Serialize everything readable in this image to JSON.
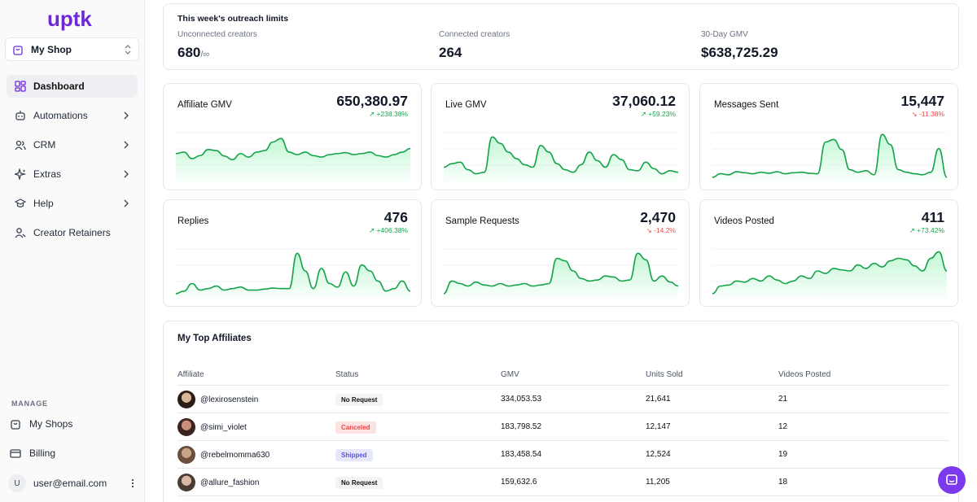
{
  "app": {
    "logo_text": "uptk",
    "brand_color": "#6d28d9"
  },
  "shop_selector": {
    "value": "My Shop"
  },
  "nav": [
    {
      "label": "Dashboard",
      "icon": "dashboard-icon",
      "active": true
    },
    {
      "label": "Automations",
      "icon": "robot-icon"
    },
    {
      "label": "CRM",
      "icon": "users-icon"
    },
    {
      "label": "Extras",
      "icon": "sparkles-icon"
    },
    {
      "label": "Help",
      "icon": "graduation-cap-icon"
    },
    {
      "label": "Creator Retainers",
      "icon": "user-retainer-icon"
    }
  ],
  "manage": {
    "label": "MANAGE",
    "my_shops": "My Shops",
    "billing": "Billing"
  },
  "user": {
    "initial": "U",
    "email": "user@email.com"
  },
  "limits": {
    "title": "This week's outreach limits",
    "unconnected_label": "Unconnected creators",
    "unconnected_value": "680",
    "unconnected_suffix": "/∞",
    "connected_label": "Connected creators",
    "connected_value": "264",
    "gmv_label": "30-Day GMV",
    "gmv_value": "$638,725.29"
  },
  "metrics": [
    {
      "title": "Affiliate GMV",
      "value": "650,380.97",
      "delta": "+238.38%",
      "trend": "up",
      "points": [
        0.52,
        0.55,
        0.42,
        0.48,
        0.6,
        0.58,
        0.47,
        0.4,
        0.52,
        0.45,
        0.55,
        0.58,
        0.75,
        0.82,
        0.55,
        0.5,
        0.55,
        0.48,
        0.45,
        0.5,
        0.52,
        0.54,
        0.5,
        0.52,
        0.55,
        0.48,
        0.45,
        0.5,
        0.55,
        0.62
      ]
    },
    {
      "title": "Live GMV",
      "value": "37,060.12",
      "delta": "+59.23%",
      "trend": "up",
      "points": [
        0.25,
        0.32,
        0.35,
        0.2,
        0.12,
        0.15,
        0.85,
        0.72,
        0.55,
        0.42,
        0.3,
        0.25,
        0.68,
        0.55,
        0.32,
        0.2,
        0.15,
        0.3,
        0.55,
        0.38,
        0.25,
        0.5,
        0.4,
        0.2,
        0.18,
        0.35,
        0.22,
        0.12,
        0.18,
        0.15
      ]
    },
    {
      "title": "Messages Sent",
      "value": "15,447",
      "delta": "-11.38%",
      "trend": "down",
      "points": [
        0.05,
        0.12,
        0.1,
        0.16,
        0.14,
        0.12,
        0.15,
        0.13,
        0.16,
        0.12,
        0.14,
        0.15,
        0.13,
        0.12,
        0.75,
        0.8,
        0.6,
        0.2,
        0.15,
        0.18,
        0.1,
        0.9,
        0.7,
        0.2,
        0.15,
        0.12,
        0.1,
        0.15,
        0.62,
        0.05
      ]
    },
    {
      "title": "Replies",
      "value": "476",
      "delta": "+406.38%",
      "trend": "up",
      "points": [
        0.05,
        0.1,
        0.25,
        0.12,
        0.15,
        0.2,
        0.12,
        0.15,
        0.18,
        0.12,
        0.12,
        0.14,
        0.16,
        0.15,
        0.15,
        0.85,
        0.5,
        0.15,
        0.55,
        0.25,
        0.18,
        0.48,
        0.2,
        0.62,
        0.5,
        0.3,
        0.1,
        0.15,
        0.3,
        0.1
      ]
    },
    {
      "title": "Sample Requests",
      "value": "2,470",
      "delta": "-14.2%",
      "trend": "down",
      "points": [
        0.05,
        0.3,
        0.25,
        0.2,
        0.28,
        0.22,
        0.2,
        0.25,
        0.2,
        0.22,
        0.25,
        0.2,
        0.22,
        0.25,
        0.75,
        0.7,
        0.5,
        0.35,
        0.3,
        0.32,
        0.4,
        0.38,
        0.3,
        0.32,
        0.85,
        0.72,
        0.3,
        0.4,
        0.28,
        0.2
      ]
    },
    {
      "title": "Videos Posted",
      "value": "411",
      "delta": "+73.42%",
      "trend": "up",
      "points": [
        0.05,
        0.2,
        0.22,
        0.3,
        0.28,
        0.35,
        0.3,
        0.4,
        0.32,
        0.25,
        0.3,
        0.4,
        0.35,
        0.5,
        0.45,
        0.55,
        0.52,
        0.5,
        0.62,
        0.55,
        0.65,
        0.58,
        0.7,
        0.75,
        0.72,
        0.6,
        0.5,
        0.75,
        0.88,
        0.5
      ]
    }
  ],
  "top_affiliates": {
    "title": "My Top Affiliates",
    "columns": [
      "Affiliate",
      "Status",
      "GMV",
      "Units Sold",
      "Videos Posted"
    ],
    "rows": [
      {
        "handle": "@lexirosenstein",
        "status": "No Request",
        "status_kind": "none",
        "gmv": "334,053.53",
        "units": "21,641",
        "videos": "21"
      },
      {
        "handle": "@simi_violet",
        "status": "Canceled",
        "status_kind": "cancel",
        "gmv": "183,798.52",
        "units": "12,147",
        "videos": "12"
      },
      {
        "handle": "@rebelmomma630",
        "status": "Shipped",
        "status_kind": "ship",
        "gmv": "183,458.54",
        "units": "12,524",
        "videos": "19"
      },
      {
        "handle": "@allure_fashion",
        "status": "No Request",
        "status_kind": "none",
        "gmv": "159,632.6",
        "units": "11,205",
        "videos": "18"
      }
    ]
  },
  "colors": {
    "spark_line": "#16a34a",
    "spark_fill": "#bbf7d0",
    "chat_button": "#7c3aed"
  }
}
